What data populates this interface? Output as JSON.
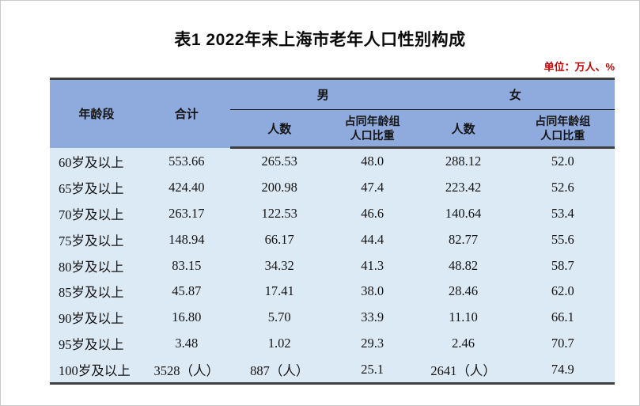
{
  "page": {
    "title": "表1  2022年末上海市老年人口性别构成",
    "unit_note": "单位：万人、%"
  },
  "colors": {
    "header_bg": "#8faadc",
    "body_bg": "#dceaf6",
    "unit_text": "#c00000",
    "rule_dark": "#3f3f3f"
  },
  "table": {
    "header": {
      "age_group": "年龄段",
      "total": "合计",
      "male_group": "男",
      "female_group": "女",
      "count": "人数",
      "share_line1": "占同年龄组",
      "share_line2": "人口比重"
    },
    "rows": [
      [
        "60岁及以上",
        "553.66",
        "265.53",
        "48.0",
        "288.12",
        "52.0"
      ],
      [
        "65岁及以上",
        "424.40",
        "200.98",
        "47.4",
        "223.42",
        "52.6"
      ],
      [
        "70岁及以上",
        "263.17",
        "122.53",
        "46.6",
        "140.64",
        "53.4"
      ],
      [
        "75岁及以上",
        "148.94",
        "66.17",
        "44.4",
        "82.77",
        "55.6"
      ],
      [
        "80岁及以上",
        "83.15",
        "34.32",
        "41.3",
        "48.82",
        "58.7"
      ],
      [
        "85岁及以上",
        "45.87",
        "17.41",
        "38.0",
        "28.46",
        "62.0"
      ],
      [
        "90岁及以上",
        "16.80",
        "5.70",
        "33.9",
        "11.10",
        "66.1"
      ],
      [
        "95岁及以上",
        "3.48",
        "1.02",
        "29.3",
        "2.46",
        "70.7"
      ],
      [
        "100岁及以上",
        "3528（人）",
        "887（人）",
        "25.1",
        "2641（人）",
        "74.9"
      ]
    ]
  }
}
